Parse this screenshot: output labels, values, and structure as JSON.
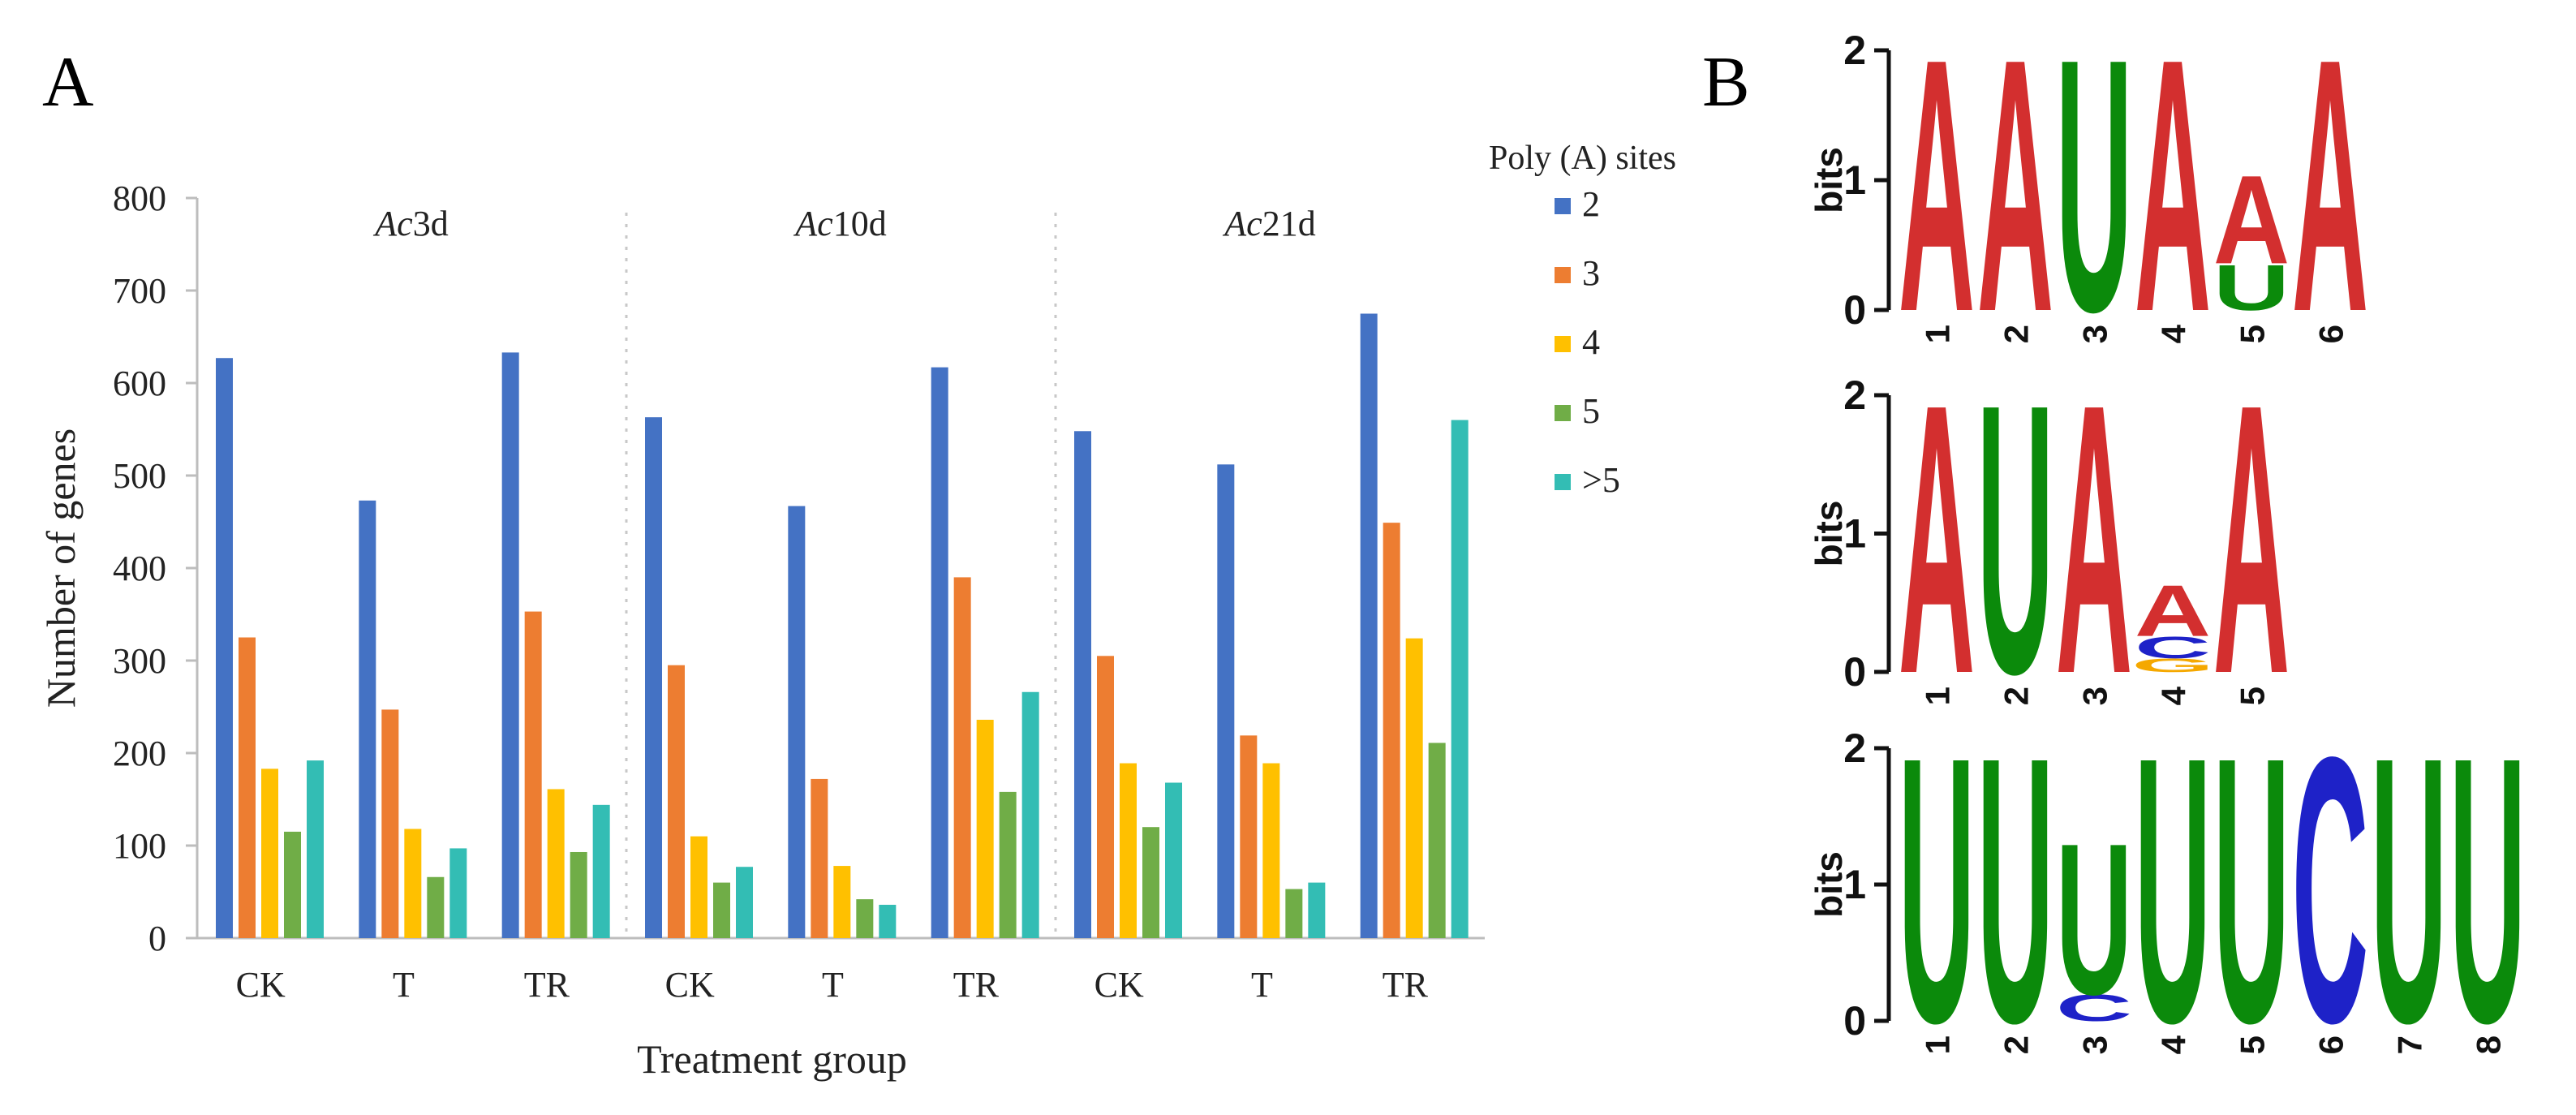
{
  "panels": {
    "a_label": "A",
    "b_label": "B"
  },
  "colors": {
    "s2": "#4472C4",
    "s3": "#ED7D31",
    "s4": "#FFC000",
    "s5": "#70AD47",
    "s6": "#33BDB4",
    "A": "#D32F2F",
    "U": "#0B8A0B",
    "C": "#1E22C8",
    "G": "#F5A800"
  },
  "chart_data": [
    {
      "type": "bar",
      "title": "",
      "xlabel": "Treatment group",
      "ylabel": "Number of genes",
      "ylim": [
        0,
        800
      ],
      "yticks": [
        "0",
        "100",
        "200",
        "300",
        "400",
        "500",
        "600",
        "700",
        "800"
      ],
      "grid": false,
      "legend": {
        "title": "Poly (A) sites",
        "placement": "right",
        "entries": [
          "2",
          "3",
          "4",
          "5",
          ">5"
        ]
      },
      "groups": [
        {
          "italic": "Ac",
          "suffix": "3d",
          "categories": [
            "CK",
            "T",
            "TR"
          ]
        },
        {
          "italic": "Ac",
          "suffix": "10d",
          "categories": [
            "CK",
            "T",
            "TR"
          ]
        },
        {
          "italic": "Ac",
          "suffix": "21d",
          "categories": [
            "CK",
            "T",
            "TR"
          ]
        }
      ],
      "categories": [
        "CK",
        "T",
        "TR",
        "CK",
        "T",
        "TR",
        "CK",
        "T",
        "TR"
      ],
      "series": [
        {
          "name": "2",
          "values": [
            627,
            473,
            633,
            563,
            467,
            617,
            548,
            512,
            675
          ]
        },
        {
          "name": "3",
          "values": [
            325,
            247,
            353,
            295,
            172,
            390,
            305,
            219,
            449
          ]
        },
        {
          "name": "4",
          "values": [
            183,
            118,
            161,
            110,
            78,
            236,
            189,
            189,
            324
          ]
        },
        {
          "name": "5",
          "values": [
            115,
            66,
            93,
            60,
            42,
            158,
            120,
            53,
            211
          ]
        },
        {
          "name": ">5",
          "values": [
            192,
            97,
            144,
            77,
            36,
            266,
            168,
            60,
            560
          ]
        }
      ]
    },
    {
      "type": "sequence-logo",
      "ylabel": "bits",
      "ylim": [
        0,
        2
      ],
      "yticks": [
        "0",
        "1",
        "2"
      ],
      "motifs": [
        {
          "positions": [
            {
              "pos": "1",
              "letters": [
                {
                  "l": "A",
                  "h": 2.0
                }
              ]
            },
            {
              "pos": "2",
              "letters": [
                {
                  "l": "A",
                  "h": 2.0
                }
              ]
            },
            {
              "pos": "3",
              "letters": [
                {
                  "l": "U",
                  "h": 2.0
                }
              ]
            },
            {
              "pos": "4",
              "letters": [
                {
                  "l": "A",
                  "h": 2.0
                }
              ]
            },
            {
              "pos": "5",
              "letters": [
                {
                  "l": "U",
                  "h": 0.36
                },
                {
                  "l": "A",
                  "h": 0.7
                }
              ]
            },
            {
              "pos": "6",
              "letters": [
                {
                  "l": "A",
                  "h": 2.0
                }
              ]
            }
          ]
        },
        {
          "positions": [
            {
              "pos": "1",
              "letters": [
                {
                  "l": "A",
                  "h": 2.0
                }
              ]
            },
            {
              "pos": "2",
              "letters": [
                {
                  "l": "U",
                  "h": 2.0
                }
              ]
            },
            {
              "pos": "3",
              "letters": [
                {
                  "l": "A",
                  "h": 2.0
                }
              ]
            },
            {
              "pos": "4",
              "letters": [
                {
                  "l": "G",
                  "h": 0.1
                },
                {
                  "l": "C",
                  "h": 0.16
                },
                {
                  "l": "A",
                  "h": 0.38
                }
              ]
            },
            {
              "pos": "5",
              "letters": [
                {
                  "l": "A",
                  "h": 2.0
                }
              ]
            }
          ]
        },
        {
          "positions": [
            {
              "pos": "1",
              "letters": [
                {
                  "l": "U",
                  "h": 2.0
                }
              ]
            },
            {
              "pos": "2",
              "letters": [
                {
                  "l": "U",
                  "h": 2.0
                }
              ]
            },
            {
              "pos": "3",
              "letters": [
                {
                  "l": "C",
                  "h": 0.2
                },
                {
                  "l": "U",
                  "h": 1.14
                }
              ]
            },
            {
              "pos": "4",
              "letters": [
                {
                  "l": "U",
                  "h": 2.0
                }
              ]
            },
            {
              "pos": "5",
              "letters": [
                {
                  "l": "U",
                  "h": 2.0
                }
              ]
            },
            {
              "pos": "6",
              "letters": [
                {
                  "l": "C",
                  "h": 2.0
                }
              ]
            },
            {
              "pos": "7",
              "letters": [
                {
                  "l": "U",
                  "h": 2.0
                }
              ]
            },
            {
              "pos": "8",
              "letters": [
                {
                  "l": "U",
                  "h": 2.0
                }
              ]
            }
          ]
        }
      ]
    }
  ]
}
